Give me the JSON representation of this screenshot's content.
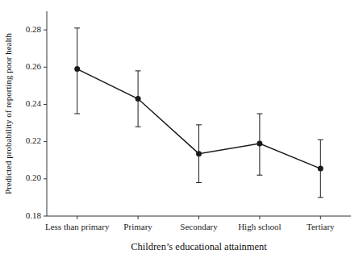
{
  "chart_data": {
    "type": "line",
    "categories": [
      "Less than primary",
      "Primary",
      "Secondary",
      "High school",
      "Tertiary"
    ],
    "values": [
      0.259,
      0.243,
      0.2135,
      0.219,
      0.2055
    ],
    "ci_upper": [
      0.281,
      0.258,
      0.229,
      0.235,
      0.221
    ],
    "ci_lower": [
      0.235,
      0.228,
      0.198,
      0.202,
      0.19
    ],
    "xlabel": "Children’s educational attainment",
    "ylabel": "Predicted probability of reporting poor health",
    "ylim": [
      0.18,
      0.29
    ],
    "yticks": [
      0.18,
      {
        "value": 0.2,
        "label": "0.20"
      },
      0.22,
      0.24,
      0.26,
      0.28
    ],
    "color": "#1a1a1a",
    "marker": "circle"
  }
}
